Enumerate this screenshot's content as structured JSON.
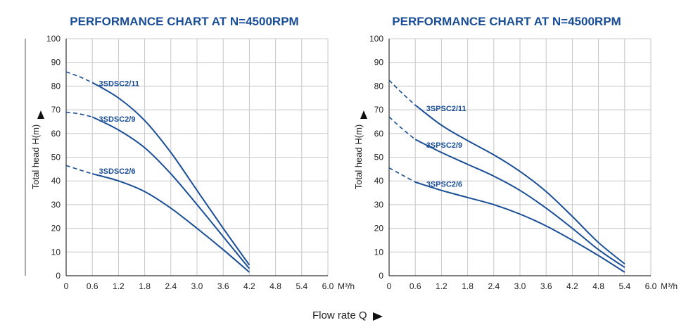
{
  "left_axis_label": "Total head H(m)",
  "flow_label": "Flow rate Q",
  "colors": {
    "curve": "#1a4e96",
    "title": "#1a4e96",
    "grid": "#c8c8c8",
    "axis": "#333333"
  },
  "chart_data": [
    {
      "type": "line",
      "title": "PERFORMANCE CHART AT N=4500RPM",
      "ylabel": "Total head H(m)",
      "xunit": "M³/h",
      "xlim": [
        0,
        6.0
      ],
      "ylim": [
        0,
        100
      ],
      "xticks": [
        "0",
        "0.6",
        "1.2",
        "1.8",
        "2.4",
        "3.0",
        "3.6",
        "4.2",
        "4.8",
        "5.4",
        "6.0"
      ],
      "yticks": [
        "0",
        "10",
        "20",
        "30",
        "40",
        "50",
        "60",
        "70",
        "80",
        "90",
        "100"
      ],
      "grid": true,
      "series": [
        {
          "name": "3SDSC2/11",
          "dashed": [
            [
              0,
              86
            ],
            [
              0.3,
              84
            ],
            [
              0.6,
              81.5
            ]
          ],
          "x": [
            0.6,
            1.2,
            1.8,
            2.4,
            3.0,
            3.6,
            4.2
          ],
          "y": [
            81.5,
            75,
            65.5,
            52,
            36,
            20,
            4.5
          ]
        },
        {
          "name": "3SDSC2/9",
          "dashed": [
            [
              0,
              69
            ],
            [
              0.3,
              68.3
            ],
            [
              0.6,
              67
            ]
          ],
          "x": [
            0.6,
            1.2,
            1.8,
            2.4,
            3.0,
            3.6,
            4.2
          ],
          "y": [
            67,
            61.5,
            54,
            43,
            30,
            16.5,
            3
          ]
        },
        {
          "name": "3SDSC2/6",
          "dashed": [
            [
              0,
              46.5
            ],
            [
              0.3,
              44.7
            ],
            [
              0.6,
              43
            ]
          ],
          "x": [
            0.6,
            1.2,
            1.8,
            2.4,
            3.0,
            3.6,
            4.2
          ],
          "y": [
            43,
            40,
            35.5,
            28.5,
            20,
            11,
            1.5
          ]
        }
      ]
    },
    {
      "type": "line",
      "title": "PERFORMANCE CHART AT N=4500RPM",
      "ylabel": "Total head H(m)",
      "xunit": "M³/h",
      "xlim": [
        0,
        6.0
      ],
      "ylim": [
        0,
        100
      ],
      "xticks": [
        "0",
        "0.6",
        "1.2",
        "1.8",
        "2.4",
        "3.0",
        "3.6",
        "4.2",
        "4.8",
        "5.4",
        "6.0"
      ],
      "yticks": [
        "0",
        "10",
        "20",
        "30",
        "40",
        "50",
        "60",
        "70",
        "80",
        "90",
        "100"
      ],
      "grid": true,
      "series": [
        {
          "name": "3SPSC2/11",
          "dashed": [
            [
              0,
              82.5
            ],
            [
              0.3,
              77
            ],
            [
              0.6,
              72
            ]
          ],
          "x": [
            0.6,
            1.2,
            1.8,
            2.4,
            3.0,
            3.6,
            4.2,
            4.8,
            5.4
          ],
          "y": [
            72,
            63.5,
            57,
            51,
            44,
            35.5,
            25,
            14,
            5
          ]
        },
        {
          "name": "3SPSC2/9",
          "dashed": [
            [
              0,
              67
            ],
            [
              0.3,
              62
            ],
            [
              0.6,
              57.5
            ]
          ],
          "x": [
            0.6,
            1.2,
            1.8,
            2.4,
            3.0,
            3.6,
            4.2,
            4.8,
            5.4
          ],
          "y": [
            57.5,
            52,
            47,
            42,
            36,
            28.5,
            20,
            11,
            3.5
          ]
        },
        {
          "name": "3SPSC2/6",
          "dashed": [
            [
              0,
              45.5
            ],
            [
              0.3,
              42.5
            ],
            [
              0.6,
              39.5
            ]
          ],
          "x": [
            0.6,
            1.2,
            1.8,
            2.4,
            3.0,
            3.6,
            4.2,
            4.8,
            5.4
          ],
          "y": [
            39.5,
            36,
            33,
            30,
            26,
            21,
            15,
            8.5,
            1.5
          ]
        }
      ]
    }
  ]
}
